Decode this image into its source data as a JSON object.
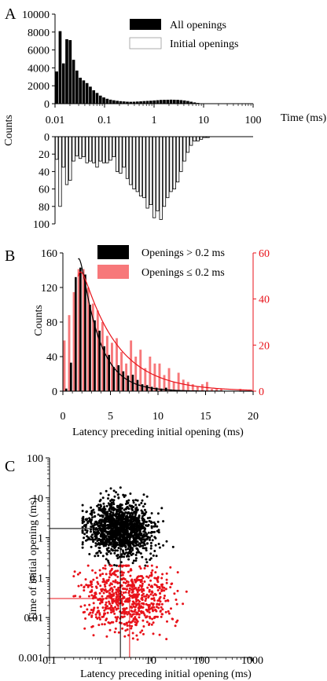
{
  "panel_labels": [
    "A",
    "B",
    "C"
  ],
  "chart_data": [
    {
      "panel": "A",
      "type": "bar",
      "subtype": "mirrored-histogram-log-x",
      "xlabel": "Time (ms)",
      "ylabel": "Counts",
      "x_scale": "log",
      "xlim": [
        0.01,
        100
      ],
      "x_ticks": [
        "0.01",
        "0.1",
        "1",
        "10",
        "100"
      ],
      "top_ylim": [
        0,
        10000
      ],
      "top_y_ticks": [
        "0",
        "2000",
        "4000",
        "6000",
        "8000",
        "10000"
      ],
      "bottom_ylim": [
        0,
        100
      ],
      "bottom_y_ticks": [
        "0",
        "20",
        "40",
        "60",
        "80",
        "100"
      ],
      "legend": [
        "All openings",
        "Initial openings"
      ],
      "legend_position": "top-right",
      "bin_edges": [
        0.01,
        0.0117,
        0.0137,
        0.016,
        0.0187,
        0.0219,
        0.0256,
        0.0299,
        0.035,
        0.0409,
        0.0478,
        0.0559,
        0.0653,
        0.0764,
        0.0893,
        0.1044,
        0.1221,
        0.1427,
        0.1668,
        0.195,
        0.228,
        0.2666,
        0.3117,
        0.3644,
        0.426,
        0.498,
        0.5822,
        0.6807,
        0.7958,
        0.9304,
        1.0877,
        1.2716,
        1.4866,
        1.738,
        2.0319,
        2.3755,
        2.7771,
        3.2467,
        3.7957,
        4.4375,
        5.1879,
        6.0651,
        7.0907,
        8.2897,
        9.6914,
        11.33,
        13.25,
        15.49
      ],
      "series": [
        {
          "name": "All openings",
          "values": [
            3600,
            8100,
            4500,
            7200,
            7100,
            4900,
            3700,
            2900,
            2600,
            2300,
            1900,
            1500,
            1200,
            900,
            700,
            550,
            450,
            380,
            320,
            280,
            250,
            220,
            210,
            220,
            240,
            260,
            290,
            310,
            330,
            360,
            390,
            420,
            430,
            440,
            450,
            440,
            430,
            400,
            360,
            300,
            220,
            140,
            80,
            40,
            20,
            5,
            0
          ]
        },
        {
          "name": "Initial openings",
          "values": [
            26,
            80,
            35,
            55,
            50,
            28,
            22,
            25,
            23,
            30,
            28,
            30,
            35,
            28,
            30,
            30,
            27,
            23,
            40,
            42,
            35,
            48,
            55,
            60,
            63,
            68,
            70,
            82,
            78,
            93,
            85,
            95,
            80,
            70,
            63,
            60,
            52,
            40,
            28,
            18,
            10,
            5,
            5,
            3,
            1,
            1,
            0
          ]
        }
      ]
    },
    {
      "panel": "B",
      "type": "bar",
      "subtype": "dual-axis-histogram-with-fits",
      "xlabel": "Latency preceding initial opening (ms)",
      "ylabel": "Counts",
      "xlim": [
        0,
        20
      ],
      "x_ticks": [
        "0",
        "5",
        "10",
        "15",
        "20"
      ],
      "left_ylim": [
        0,
        160
      ],
      "left_y_ticks": [
        "0",
        "40",
        "80",
        "120",
        "160"
      ],
      "right_ylim": [
        0,
        60
      ],
      "right_y_ticks": [
        "0",
        "20",
        "40",
        "60"
      ],
      "right_axis_color": "#e8121a",
      "legend": [
        "Openings > 0.2 ms",
        "Openings ≤ 0.2 ms"
      ],
      "legend_position": "top-right",
      "bin_width": 0.5,
      "bin_starts": [
        0.0,
        0.5,
        1.0,
        1.5,
        2.0,
        2.5,
        3.0,
        3.5,
        4.0,
        4.5,
        5.0,
        5.5,
        6.0,
        6.5,
        7.0,
        7.5,
        8.0,
        8.5,
        9.0,
        9.5,
        10.0,
        10.5,
        11.0,
        11.5,
        12.0,
        12.5,
        13.0,
        13.5,
        14.0,
        14.5,
        15.0,
        15.5,
        16.0,
        16.5,
        17.0,
        17.5,
        18.0,
        18.5,
        19.0,
        19.5
      ],
      "series": [
        {
          "name": "Openings > 0.2 ms",
          "axis": "left",
          "color": "#000000",
          "values": [
            3,
            33,
            132,
            143,
            135,
            100,
            82,
            70,
            52,
            42,
            28,
            30,
            23,
            18,
            19,
            13,
            8,
            7,
            5,
            4,
            3,
            4,
            2,
            1,
            1,
            1,
            0,
            1,
            0,
            0,
            0,
            0,
            0,
            0,
            0,
            0,
            0,
            0,
            0,
            0
          ]
        },
        {
          "name": "Openings ≤ 0.2 ms",
          "axis": "right",
          "color": "#f7787a",
          "values": [
            22,
            33,
            43,
            53,
            53,
            45,
            38,
            35,
            30,
            24,
            21,
            23,
            17,
            12,
            22,
            15,
            18,
            10,
            15,
            12,
            12,
            7,
            10,
            4,
            8,
            5,
            4,
            3,
            2,
            3,
            4,
            1,
            1,
            1,
            0,
            0,
            0,
            1,
            0,
            0
          ]
        }
      ],
      "fits": [
        {
          "axis": "left",
          "color": "#000000",
          "function": "exponential"
        },
        {
          "axis": "right",
          "color": "#e8121a",
          "function": "exponential"
        }
      ]
    },
    {
      "panel": "C",
      "type": "scatter",
      "xlabel": "Latency preceding initial opening (ms)",
      "ylabel": "Time of initial opening (ms)",
      "x_scale": "log",
      "y_scale": "log",
      "xlim": [
        0.1,
        1000
      ],
      "ylim": [
        0.001,
        100
      ],
      "x_ticks": [
        "0.1",
        "1",
        "10",
        "100",
        "1000"
      ],
      "y_ticks": [
        "0.001",
        "0.01",
        "0.1",
        "1",
        "10",
        "100"
      ],
      "series": [
        {
          "name": "Openings > 0.2 ms",
          "color": "#000000",
          "n_points": 1400,
          "x_range": [
            0.45,
            60
          ],
          "y_range": [
            0.2,
            18
          ],
          "median": {
            "x": 2.5,
            "y": 1.7
          }
        },
        {
          "name": "Openings ≤ 0.2 ms",
          "color": "#e8121a",
          "n_points": 700,
          "x_range": [
            0.3,
            160
          ],
          "y_range": [
            0.0028,
            0.2
          ],
          "median": {
            "x": 3.8,
            "y": 0.03
          }
        }
      ]
    }
  ]
}
